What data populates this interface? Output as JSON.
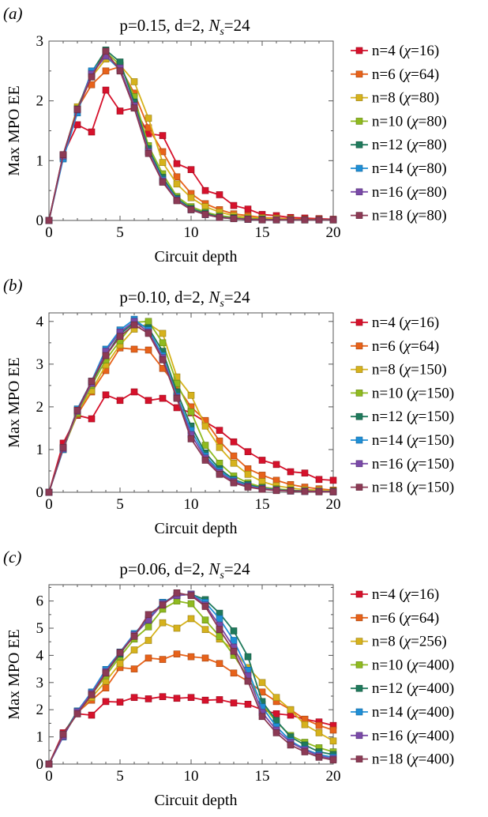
{
  "colors": [
    "#d6112b",
    "#e7621a",
    "#d6b21c",
    "#8fba1f",
    "#1f7a5c",
    "#1f8fd6",
    "#7a4aa8",
    "#8c3a55"
  ],
  "chart_data": [
    {
      "type": "line",
      "panel_label": "(a)",
      "title_prefix": "p=0.15, d=2, ",
      "title_var": "N",
      "title_sub": "s",
      "title_suffix": "=24",
      "xlabel": "Circuit depth",
      "ylabel": "Max MPO EE",
      "xlim": [
        0,
        20
      ],
      "ylim": [
        0,
        3
      ],
      "xticks": [
        0,
        5,
        10,
        15,
        20
      ],
      "yticks": [
        0,
        1,
        2,
        3
      ],
      "legend_position": "right",
      "x": [
        0,
        1,
        2,
        3,
        4,
        5,
        6,
        7,
        8,
        9,
        10,
        11,
        12,
        13,
        14,
        15,
        16,
        17,
        18,
        19,
        20
      ],
      "series": [
        {
          "name_prefix": "n=4 (",
          "chi": "=16)",
          "values": [
            0,
            1.1,
            1.6,
            1.48,
            2.18,
            1.83,
            1.88,
            1.45,
            1.42,
            0.95,
            0.85,
            0.5,
            0.43,
            0.25,
            0.19,
            0.1,
            0.08,
            0.05,
            0.04,
            0.03,
            0.02
          ]
        },
        {
          "name_prefix": "n=6 (",
          "chi": "=64)",
          "values": [
            0,
            1.05,
            1.87,
            2.27,
            2.5,
            2.57,
            2.13,
            1.55,
            1.15,
            0.73,
            0.45,
            0.28,
            0.18,
            0.11,
            0.08,
            0.05,
            0.04,
            0.03,
            0.02,
            0.02,
            0.01
          ]
        },
        {
          "name_prefix": "n=8 (",
          "chi": "=80)",
          "values": [
            0,
            1.07,
            1.9,
            2.4,
            2.7,
            2.6,
            2.32,
            1.71,
            0.97,
            0.61,
            0.38,
            0.23,
            0.14,
            0.08,
            0.05,
            0.04,
            0.03,
            0.02,
            0.01,
            0.01,
            0.01
          ]
        },
        {
          "name_prefix": "n=10 (",
          "chi": "=80)",
          "values": [
            0,
            1.08,
            1.87,
            2.45,
            2.82,
            2.6,
            2.07,
            1.25,
            0.78,
            0.4,
            0.23,
            0.14,
            0.08,
            0.05,
            0.03,
            0.02,
            0.01,
            0.01,
            0.01,
            0.01,
            0.01
          ]
        },
        {
          "name_prefix": "n=12 (",
          "chi": "=80)",
          "values": [
            0,
            1.08,
            1.86,
            2.48,
            2.85,
            2.65,
            1.98,
            1.2,
            0.72,
            0.37,
            0.2,
            0.12,
            0.06,
            0.04,
            0.02,
            0.02,
            0.01,
            0.01,
            0.01,
            0.01,
            0.01
          ]
        },
        {
          "name_prefix": "n=14 (",
          "chi": "=80)",
          "values": [
            0,
            1.03,
            1.8,
            2.5,
            2.75,
            2.52,
            1.9,
            1.15,
            0.68,
            0.35,
            0.18,
            0.1,
            0.05,
            0.03,
            0.02,
            0.01,
            0.01,
            0.01,
            0.01,
            0.01,
            0.01
          ]
        },
        {
          "name_prefix": "n=16 (",
          "chi": "=80)",
          "values": [
            0,
            1.08,
            1.85,
            2.45,
            2.75,
            2.55,
            1.92,
            1.15,
            0.66,
            0.34,
            0.18,
            0.1,
            0.05,
            0.03,
            0.02,
            0.01,
            0.01,
            0.01,
            0.01,
            0.01,
            0.01
          ]
        },
        {
          "name_prefix": "n=18 (",
          "chi": "=80)",
          "values": [
            0,
            1.1,
            1.86,
            2.4,
            2.83,
            2.5,
            1.88,
            1.12,
            0.64,
            0.33,
            0.18,
            0.1,
            0.05,
            0.03,
            0.02,
            0.01,
            0.01,
            0.01,
            0.01,
            0.01,
            0.01
          ]
        }
      ]
    },
    {
      "type": "line",
      "panel_label": "(b)",
      "title_prefix": "p=0.10, d=2, ",
      "title_var": "N",
      "title_sub": "s",
      "title_suffix": "=24",
      "xlabel": "Circuit depth",
      "ylabel": "Max MPO EE",
      "xlim": [
        0,
        20
      ],
      "ylim": [
        0,
        4.2
      ],
      "xticks": [
        0,
        5,
        10,
        15,
        20
      ],
      "yticks": [
        0,
        1,
        2,
        3,
        4
      ],
      "legend_position": "right",
      "x": [
        0,
        1,
        2,
        3,
        4,
        5,
        6,
        7,
        8,
        9,
        10,
        11,
        12,
        13,
        14,
        15,
        16,
        17,
        18,
        19,
        20
      ],
      "series": [
        {
          "name_prefix": "n=4 (",
          "chi": "=16)",
          "values": [
            0,
            1.15,
            1.8,
            1.72,
            2.28,
            2.15,
            2.35,
            2.15,
            2.2,
            1.98,
            1.86,
            1.65,
            1.45,
            1.18,
            0.95,
            0.75,
            0.65,
            0.48,
            0.45,
            0.3,
            0.28
          ]
        },
        {
          "name_prefix": "n=6 (",
          "chi": "=64)",
          "values": [
            0,
            1.02,
            1.82,
            2.35,
            2.85,
            3.38,
            3.35,
            3.33,
            2.9,
            2.48,
            2.0,
            1.68,
            1.2,
            0.85,
            0.55,
            0.4,
            0.28,
            0.18,
            0.12,
            0.08,
            0.05
          ]
        },
        {
          "name_prefix": "n=8 (",
          "chi": "=150)",
          "values": [
            0,
            1.02,
            1.9,
            2.38,
            2.98,
            3.45,
            3.82,
            3.95,
            3.72,
            2.7,
            2.27,
            1.55,
            1.05,
            0.68,
            0.42,
            0.25,
            0.15,
            0.1,
            0.06,
            0.05,
            0.03
          ]
        },
        {
          "name_prefix": "n=10 (",
          "chi": "=150)",
          "values": [
            0,
            1.0,
            1.85,
            2.5,
            3.1,
            3.55,
            3.98,
            4.0,
            3.5,
            2.55,
            1.88,
            1.1,
            0.68,
            0.38,
            0.22,
            0.12,
            0.08,
            0.05,
            0.03,
            0.02,
            0.02
          ]
        },
        {
          "name_prefix": "n=12 (",
          "chi": "=150)",
          "values": [
            0,
            1.03,
            1.92,
            2.55,
            3.2,
            3.7,
            3.98,
            3.85,
            3.3,
            2.35,
            1.55,
            0.92,
            0.55,
            0.3,
            0.18,
            0.1,
            0.06,
            0.04,
            0.03,
            0.02,
            0.02
          ]
        },
        {
          "name_prefix": "n=14 (",
          "chi": "=150)",
          "values": [
            0,
            1.0,
            1.95,
            2.6,
            3.35,
            3.8,
            4.05,
            3.8,
            3.2,
            2.25,
            1.45,
            0.85,
            0.5,
            0.28,
            0.15,
            0.09,
            0.05,
            0.03,
            0.02,
            0.02,
            0.01
          ]
        },
        {
          "name_prefix": "n=16 (",
          "chi": "=150)",
          "values": [
            0,
            1.02,
            1.9,
            2.55,
            3.3,
            3.75,
            4.0,
            3.75,
            3.15,
            2.22,
            1.35,
            0.8,
            0.46,
            0.25,
            0.14,
            0.08,
            0.05,
            0.03,
            0.02,
            0.02,
            0.01
          ]
        },
        {
          "name_prefix": "n=18 (",
          "chi": "=150)",
          "values": [
            0,
            1.05,
            1.92,
            2.6,
            3.2,
            3.65,
            3.92,
            3.72,
            3.1,
            2.2,
            1.25,
            0.75,
            0.42,
            0.22,
            0.12,
            0.07,
            0.04,
            0.03,
            0.02,
            0.01,
            0.01
          ]
        }
      ]
    },
    {
      "type": "line",
      "panel_label": "(c)",
      "title_prefix": "p=0.06, d=2, ",
      "title_var": "N",
      "title_sub": "s",
      "title_suffix": "=24",
      "xlabel": "Circuit depth",
      "ylabel": "Max MPO EE",
      "xlim": [
        0,
        20
      ],
      "ylim": [
        0,
        6.6
      ],
      "xticks": [
        0,
        5,
        10,
        15,
        20
      ],
      "yticks": [
        0,
        1,
        2,
        3,
        4,
        5,
        6
      ],
      "legend_position": "right",
      "x": [
        0,
        1,
        2,
        3,
        4,
        5,
        6,
        7,
        8,
        9,
        10,
        11,
        12,
        13,
        14,
        15,
        16,
        17,
        18,
        19,
        20
      ],
      "series": [
        {
          "name_prefix": "n=4 (",
          "chi": "=16)",
          "values": [
            0,
            1.15,
            1.85,
            1.8,
            2.3,
            2.28,
            2.45,
            2.4,
            2.48,
            2.42,
            2.45,
            2.35,
            2.37,
            2.25,
            2.2,
            2.0,
            1.85,
            1.8,
            1.65,
            1.55,
            1.42
          ]
        },
        {
          "name_prefix": "n=6 (",
          "chi": "=64)",
          "values": [
            0,
            1.05,
            1.9,
            2.35,
            2.8,
            3.55,
            3.5,
            3.9,
            3.85,
            4.05,
            3.95,
            3.9,
            3.7,
            3.35,
            3.05,
            2.65,
            2.3,
            2.0,
            1.65,
            1.42,
            1.25
          ]
        },
        {
          "name_prefix": "n=8 (",
          "chi": "=256)",
          "values": [
            0,
            1.05,
            1.9,
            2.45,
            3.05,
            3.7,
            4.2,
            4.55,
            5.2,
            5.0,
            5.35,
            4.95,
            4.6,
            4.2,
            3.55,
            3.0,
            2.45,
            2.0,
            1.45,
            1.15,
            0.85
          ]
        },
        {
          "name_prefix": "n=10 (",
          "chi": "=400)",
          "values": [
            0,
            1.05,
            1.88,
            2.55,
            3.25,
            3.95,
            4.6,
            5.05,
            5.7,
            6.0,
            5.9,
            5.3,
            4.7,
            4.0,
            3.2,
            2.2,
            1.55,
            1.05,
            0.8,
            0.6,
            0.45
          ]
        },
        {
          "name_prefix": "n=12 (",
          "chi": "=400)",
          "values": [
            0,
            1.08,
            1.95,
            2.62,
            3.35,
            4.05,
            4.75,
            5.3,
            5.95,
            6.2,
            6.25,
            6.05,
            5.55,
            4.9,
            3.95,
            2.3,
            1.6,
            1.0,
            0.7,
            0.45,
            0.35
          ]
        },
        {
          "name_prefix": "n=14 (",
          "chi": "=400)",
          "values": [
            0,
            1.0,
            1.95,
            2.65,
            3.48,
            4.12,
            4.8,
            5.35,
            5.95,
            6.2,
            6.25,
            5.95,
            5.35,
            4.55,
            3.45,
            2.1,
            1.38,
            0.85,
            0.55,
            0.35,
            0.25
          ]
        },
        {
          "name_prefix": "n=16 (",
          "chi": "=400)",
          "values": [
            0,
            1.02,
            1.92,
            2.6,
            3.4,
            4.1,
            4.75,
            5.3,
            5.9,
            6.2,
            6.25,
            5.85,
            5.1,
            4.3,
            3.25,
            1.9,
            1.25,
            0.8,
            0.52,
            0.3,
            0.2
          ]
        },
        {
          "name_prefix": "n=18 (",
          "chi": "=400)",
          "values": [
            0,
            1.1,
            1.85,
            2.55,
            3.35,
            4.1,
            4.7,
            5.5,
            5.85,
            6.3,
            6.2,
            5.8,
            4.95,
            4.15,
            3.05,
            1.75,
            1.15,
            0.7,
            0.45,
            0.25,
            0.15
          ]
        }
      ]
    }
  ]
}
